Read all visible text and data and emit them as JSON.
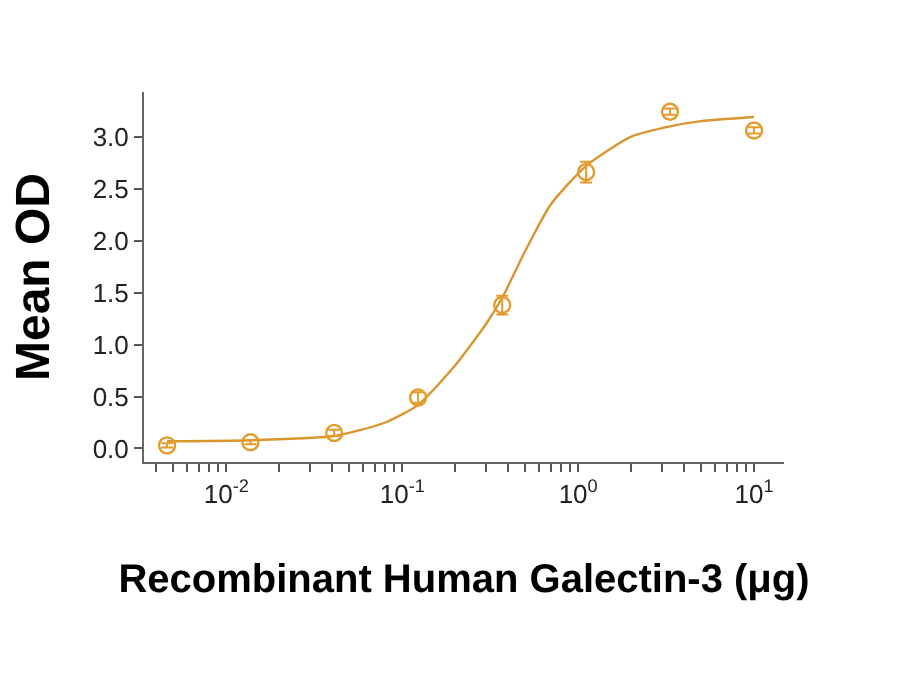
{
  "chart_data": {
    "type": "scatter",
    "xlabel": "Recombinant Human Galectin-3 (μg)",
    "ylabel": "Mean OD",
    "log": "x",
    "marker": "circle",
    "grid": false,
    "xlim": [
      0.0034,
      14.8
    ],
    "ylim": [
      -0.13,
      3.43
    ],
    "xticks": [
      {
        "value": 0.004,
        "label": null
      },
      {
        "value": 0.005,
        "label": null
      },
      {
        "value": 0.006,
        "label": null
      },
      {
        "value": 0.007,
        "label": null
      },
      {
        "value": 0.008,
        "label": null
      },
      {
        "value": 0.009,
        "label": null
      },
      {
        "value": 0.01,
        "label": "10$^{-2}$"
      },
      {
        "value": 0.02,
        "label": null
      },
      {
        "value": 0.03,
        "label": null
      },
      {
        "value": 0.04,
        "label": null
      },
      {
        "value": 0.05,
        "label": null
      },
      {
        "value": 0.06,
        "label": null
      },
      {
        "value": 0.07,
        "label": null
      },
      {
        "value": 0.08,
        "label": null
      },
      {
        "value": 0.09,
        "label": null
      },
      {
        "value": 0.1,
        "label": "10$^{-1}$"
      },
      {
        "value": 0.2,
        "label": null
      },
      {
        "value": 0.3,
        "label": null
      },
      {
        "value": 0.4,
        "label": null
      },
      {
        "value": 0.5,
        "label": null
      },
      {
        "value": 0.6,
        "label": null
      },
      {
        "value": 0.7,
        "label": null
      },
      {
        "value": 0.8,
        "label": null
      },
      {
        "value": 0.9,
        "label": null
      },
      {
        "value": 1,
        "label": "10$^{0}$"
      },
      {
        "value": 2,
        "label": null
      },
      {
        "value": 3,
        "label": null
      },
      {
        "value": 4,
        "label": null
      },
      {
        "value": 5,
        "label": null
      },
      {
        "value": 6,
        "label": null
      },
      {
        "value": 7,
        "label": null
      },
      {
        "value": 8,
        "label": null
      },
      {
        "value": 9,
        "label": null
      },
      {
        "value": 10,
        "label": "10$^{1}$"
      }
    ],
    "yticks": [
      {
        "value": 0,
        "label": "0.0"
      },
      {
        "value": 0.5,
        "label": "0.5"
      },
      {
        "value": 1,
        "label": "1.0"
      },
      {
        "value": 1.5,
        "label": "1.5"
      },
      {
        "value": 2,
        "label": "2.0"
      },
      {
        "value": 2.5,
        "label": "2.5"
      },
      {
        "value": 3,
        "label": "3.0"
      }
    ],
    "series": [
      {
        "color": "#e39b2b",
        "x": [
          0.0046,
          0.0137,
          0.041,
          0.123,
          0.37,
          1.11,
          3.33,
          10
        ],
        "values": [
          0.03,
          0.06,
          0.15,
          0.49,
          1.38,
          2.66,
          3.24,
          3.06
        ],
        "errors": [
          0.02,
          0.02,
          0.03,
          0.05,
          0.09,
          0.1,
          0.03,
          0.03
        ]
      },
      {
        "type": "line",
        "color": "#d9962e",
        "marker": "none",
        "line_style": "solid",
        "x": [
          0.0046,
          0.0137,
          0.041,
          0.08,
          0.123,
          0.2,
          0.3,
          0.37,
          0.5,
          0.7,
          1.11,
          2,
          3.33,
          5,
          10
        ],
        "values": [
          0.07,
          0.08,
          0.12,
          0.25,
          0.42,
          0.8,
          1.2,
          1.45,
          1.9,
          2.35,
          2.72,
          3.0,
          3.1,
          3.15,
          3.19
        ]
      }
    ]
  }
}
